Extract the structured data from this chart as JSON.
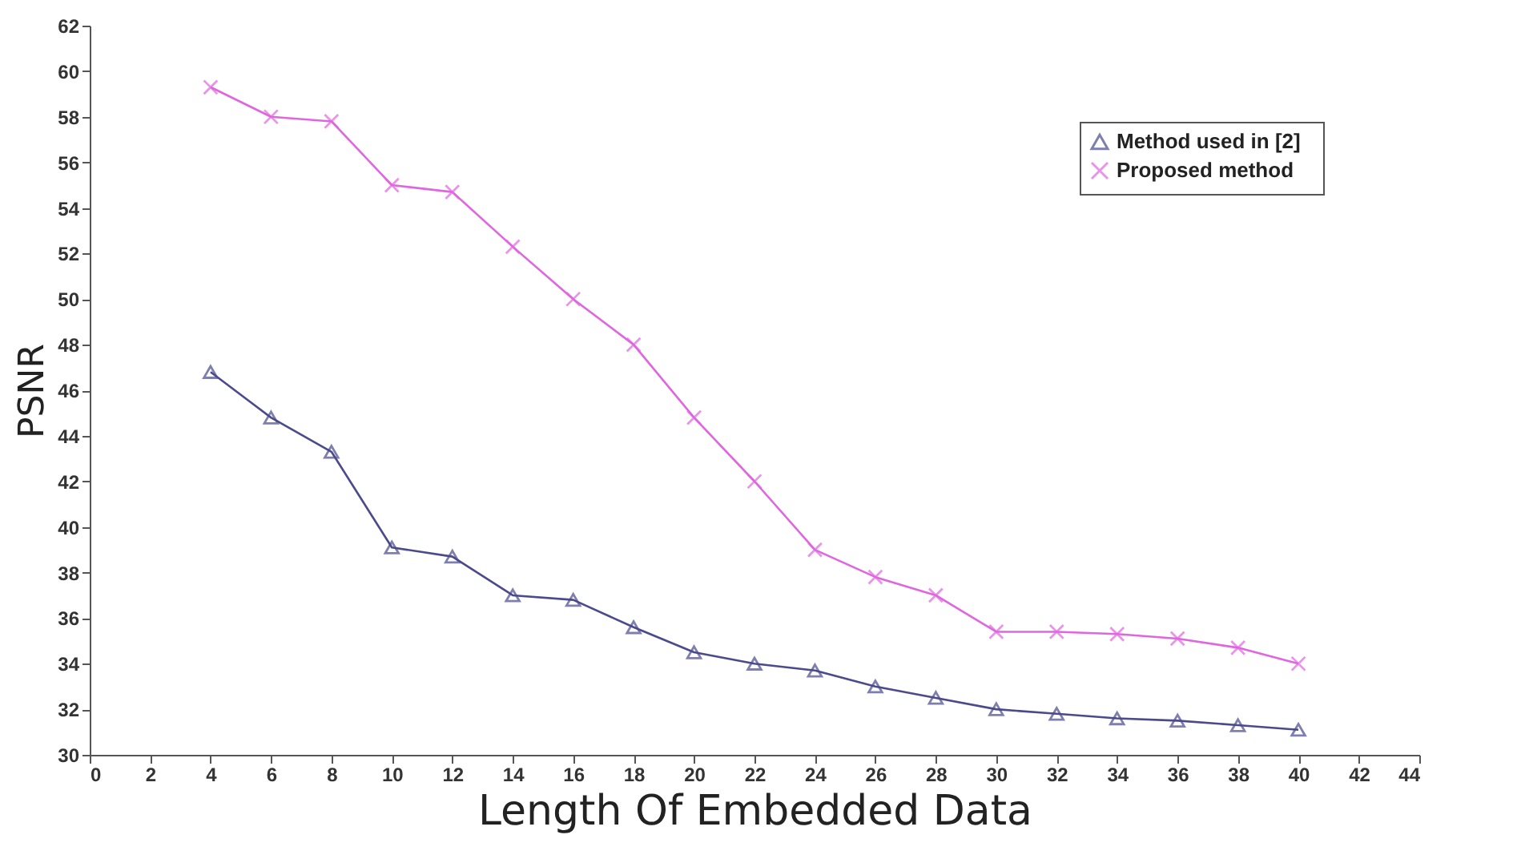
{
  "chart_data": {
    "type": "line",
    "xlabel": "Length Of Embedded Data",
    "ylabel": "PSNR",
    "x": [
      4,
      6,
      8,
      10,
      12,
      14,
      16,
      18,
      20,
      22,
      24,
      26,
      28,
      30,
      32,
      34,
      36,
      38,
      40
    ],
    "series": [
      {
        "name": "Method used  in  [2]",
        "color": "#4a4a8c",
        "marker": "triangle",
        "values": [
          46.8,
          44.8,
          43.3,
          39.1,
          38.7,
          37,
          36.8,
          35.6,
          34.5,
          34,
          33.7,
          33,
          32.5,
          32,
          31.8,
          31.6,
          31.5,
          31.3,
          31.1
        ]
      },
      {
        "name": "Proposed method",
        "color": "#e066e0",
        "marker": "cross",
        "values": [
          59.3,
          58,
          57.8,
          55,
          54.7,
          52.3,
          50,
          48,
          44.8,
          42,
          39,
          37.8,
          37,
          35.4,
          35.4,
          35.3,
          35.1,
          34.7,
          34
        ]
      }
    ],
    "xlim": [
      0,
      44
    ],
    "xticks": [
      0,
      2,
      4,
      6,
      8,
      10,
      12,
      14,
      16,
      18,
      20,
      22,
      24,
      26,
      28,
      30,
      32,
      34,
      36,
      38,
      40,
      42,
      44
    ],
    "ylim": [
      30,
      62
    ],
    "yticks": [
      30,
      32,
      34,
      36,
      38,
      40,
      42,
      44,
      46,
      48,
      50,
      52,
      54,
      56,
      58,
      60,
      62
    ],
    "grid": false,
    "legend": "top right"
  }
}
